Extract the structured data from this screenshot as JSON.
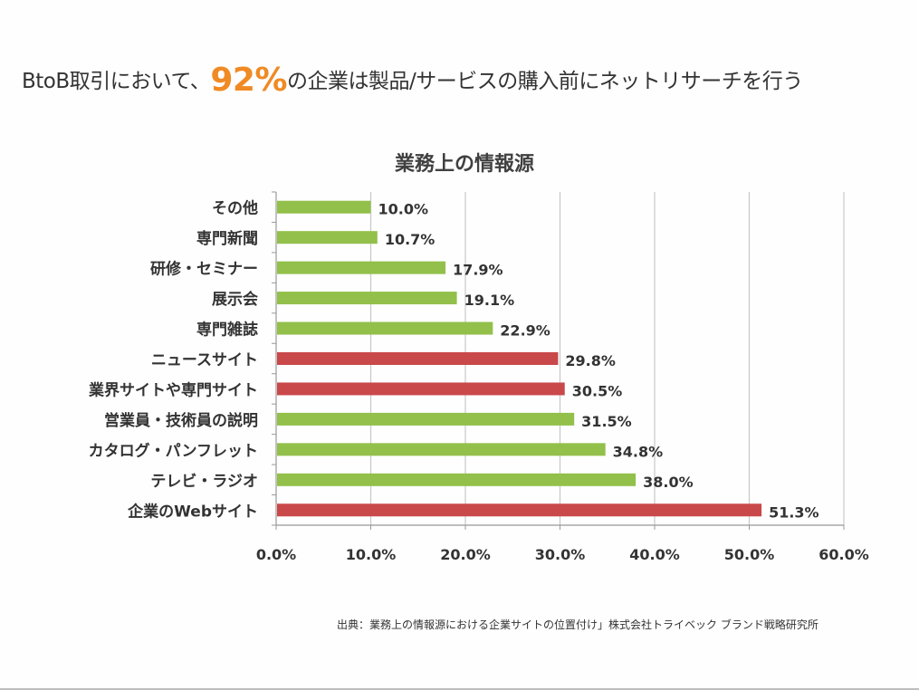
{
  "headline": {
    "prefix": "BtoB取引において、",
    "highlight": "92%",
    "suffix": "の企業は製品/サービスの購入前にネットリサーチを行う",
    "highlight_color": "#f08a24"
  },
  "source": "出典：業務上の情報源における企業サイトの位置付け」株式会社トライベック ブランド戦略研究所",
  "colors": {
    "green": "#92c04a",
    "red": "#c9484a"
  },
  "chart_data": {
    "type": "bar",
    "orientation": "horizontal",
    "title": "業務上の情報源",
    "xlabel": "",
    "ylabel": "",
    "xlim": [
      0,
      60
    ],
    "grid": true,
    "x_ticks": [
      "0.0%",
      "10.0%",
      "20.0%",
      "30.0%",
      "40.0%",
      "50.0%",
      "60.0%"
    ],
    "categories": [
      "その他",
      "専門新聞",
      "研修・セミナー",
      "展示会",
      "専門雑誌",
      "ニュースサイト",
      "業界サイトや専門サイト",
      "営業員・技術員の説明",
      "カタログ・パンフレット",
      "テレビ・ラジオ",
      "企業のWebサイト"
    ],
    "values": [
      10.0,
      10.7,
      17.9,
      19.1,
      22.9,
      29.8,
      30.5,
      31.5,
      34.8,
      38.0,
      51.3
    ],
    "labels": [
      "10.0%",
      "10.7%",
      "17.9%",
      "19.1%",
      "22.9%",
      "29.8%",
      "30.5%",
      "31.5%",
      "34.8%",
      "38.0%",
      "51.3%"
    ],
    "bar_colors": [
      "green",
      "green",
      "green",
      "green",
      "green",
      "red",
      "red",
      "green",
      "green",
      "green",
      "red"
    ]
  }
}
